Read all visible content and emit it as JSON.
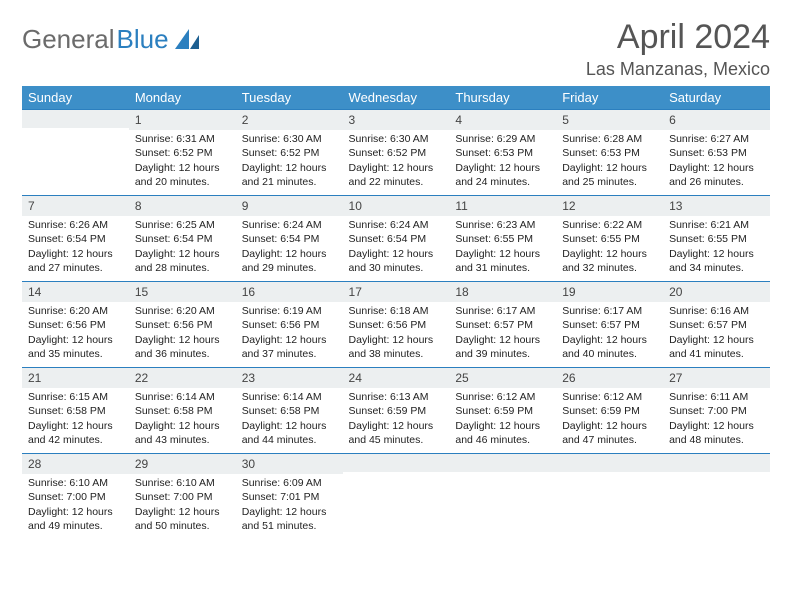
{
  "logo": {
    "text1": "General",
    "text2": "Blue"
  },
  "title": "April 2024",
  "location": "Las Manzanas, Mexico",
  "colors": {
    "header_bg": "#3d8fc8",
    "header_text": "#ffffff",
    "daynum_bg": "#eceff0",
    "border": "#2b7fbf",
    "logo_gray": "#6b6b6b",
    "logo_blue": "#2b7fbf"
  },
  "weekdays": [
    "Sunday",
    "Monday",
    "Tuesday",
    "Wednesday",
    "Thursday",
    "Friday",
    "Saturday"
  ],
  "weeks": [
    [
      {
        "n": "",
        "sr": "",
        "ss": "",
        "dl": ""
      },
      {
        "n": "1",
        "sr": "Sunrise: 6:31 AM",
        "ss": "Sunset: 6:52 PM",
        "dl": "Daylight: 12 hours and 20 minutes."
      },
      {
        "n": "2",
        "sr": "Sunrise: 6:30 AM",
        "ss": "Sunset: 6:52 PM",
        "dl": "Daylight: 12 hours and 21 minutes."
      },
      {
        "n": "3",
        "sr": "Sunrise: 6:30 AM",
        "ss": "Sunset: 6:52 PM",
        "dl": "Daylight: 12 hours and 22 minutes."
      },
      {
        "n": "4",
        "sr": "Sunrise: 6:29 AM",
        "ss": "Sunset: 6:53 PM",
        "dl": "Daylight: 12 hours and 24 minutes."
      },
      {
        "n": "5",
        "sr": "Sunrise: 6:28 AM",
        "ss": "Sunset: 6:53 PM",
        "dl": "Daylight: 12 hours and 25 minutes."
      },
      {
        "n": "6",
        "sr": "Sunrise: 6:27 AM",
        "ss": "Sunset: 6:53 PM",
        "dl": "Daylight: 12 hours and 26 minutes."
      }
    ],
    [
      {
        "n": "7",
        "sr": "Sunrise: 6:26 AM",
        "ss": "Sunset: 6:54 PM",
        "dl": "Daylight: 12 hours and 27 minutes."
      },
      {
        "n": "8",
        "sr": "Sunrise: 6:25 AM",
        "ss": "Sunset: 6:54 PM",
        "dl": "Daylight: 12 hours and 28 minutes."
      },
      {
        "n": "9",
        "sr": "Sunrise: 6:24 AM",
        "ss": "Sunset: 6:54 PM",
        "dl": "Daylight: 12 hours and 29 minutes."
      },
      {
        "n": "10",
        "sr": "Sunrise: 6:24 AM",
        "ss": "Sunset: 6:54 PM",
        "dl": "Daylight: 12 hours and 30 minutes."
      },
      {
        "n": "11",
        "sr": "Sunrise: 6:23 AM",
        "ss": "Sunset: 6:55 PM",
        "dl": "Daylight: 12 hours and 31 minutes."
      },
      {
        "n": "12",
        "sr": "Sunrise: 6:22 AM",
        "ss": "Sunset: 6:55 PM",
        "dl": "Daylight: 12 hours and 32 minutes."
      },
      {
        "n": "13",
        "sr": "Sunrise: 6:21 AM",
        "ss": "Sunset: 6:55 PM",
        "dl": "Daylight: 12 hours and 34 minutes."
      }
    ],
    [
      {
        "n": "14",
        "sr": "Sunrise: 6:20 AM",
        "ss": "Sunset: 6:56 PM",
        "dl": "Daylight: 12 hours and 35 minutes."
      },
      {
        "n": "15",
        "sr": "Sunrise: 6:20 AM",
        "ss": "Sunset: 6:56 PM",
        "dl": "Daylight: 12 hours and 36 minutes."
      },
      {
        "n": "16",
        "sr": "Sunrise: 6:19 AM",
        "ss": "Sunset: 6:56 PM",
        "dl": "Daylight: 12 hours and 37 minutes."
      },
      {
        "n": "17",
        "sr": "Sunrise: 6:18 AM",
        "ss": "Sunset: 6:56 PM",
        "dl": "Daylight: 12 hours and 38 minutes."
      },
      {
        "n": "18",
        "sr": "Sunrise: 6:17 AM",
        "ss": "Sunset: 6:57 PM",
        "dl": "Daylight: 12 hours and 39 minutes."
      },
      {
        "n": "19",
        "sr": "Sunrise: 6:17 AM",
        "ss": "Sunset: 6:57 PM",
        "dl": "Daylight: 12 hours and 40 minutes."
      },
      {
        "n": "20",
        "sr": "Sunrise: 6:16 AM",
        "ss": "Sunset: 6:57 PM",
        "dl": "Daylight: 12 hours and 41 minutes."
      }
    ],
    [
      {
        "n": "21",
        "sr": "Sunrise: 6:15 AM",
        "ss": "Sunset: 6:58 PM",
        "dl": "Daylight: 12 hours and 42 minutes."
      },
      {
        "n": "22",
        "sr": "Sunrise: 6:14 AM",
        "ss": "Sunset: 6:58 PM",
        "dl": "Daylight: 12 hours and 43 minutes."
      },
      {
        "n": "23",
        "sr": "Sunrise: 6:14 AM",
        "ss": "Sunset: 6:58 PM",
        "dl": "Daylight: 12 hours and 44 minutes."
      },
      {
        "n": "24",
        "sr": "Sunrise: 6:13 AM",
        "ss": "Sunset: 6:59 PM",
        "dl": "Daylight: 12 hours and 45 minutes."
      },
      {
        "n": "25",
        "sr": "Sunrise: 6:12 AM",
        "ss": "Sunset: 6:59 PM",
        "dl": "Daylight: 12 hours and 46 minutes."
      },
      {
        "n": "26",
        "sr": "Sunrise: 6:12 AM",
        "ss": "Sunset: 6:59 PM",
        "dl": "Daylight: 12 hours and 47 minutes."
      },
      {
        "n": "27",
        "sr": "Sunrise: 6:11 AM",
        "ss": "Sunset: 7:00 PM",
        "dl": "Daylight: 12 hours and 48 minutes."
      }
    ],
    [
      {
        "n": "28",
        "sr": "Sunrise: 6:10 AM",
        "ss": "Sunset: 7:00 PM",
        "dl": "Daylight: 12 hours and 49 minutes."
      },
      {
        "n": "29",
        "sr": "Sunrise: 6:10 AM",
        "ss": "Sunset: 7:00 PM",
        "dl": "Daylight: 12 hours and 50 minutes."
      },
      {
        "n": "30",
        "sr": "Sunrise: 6:09 AM",
        "ss": "Sunset: 7:01 PM",
        "dl": "Daylight: 12 hours and 51 minutes."
      },
      {
        "n": "",
        "sr": "",
        "ss": "",
        "dl": ""
      },
      {
        "n": "",
        "sr": "",
        "ss": "",
        "dl": ""
      },
      {
        "n": "",
        "sr": "",
        "ss": "",
        "dl": ""
      },
      {
        "n": "",
        "sr": "",
        "ss": "",
        "dl": ""
      }
    ]
  ]
}
